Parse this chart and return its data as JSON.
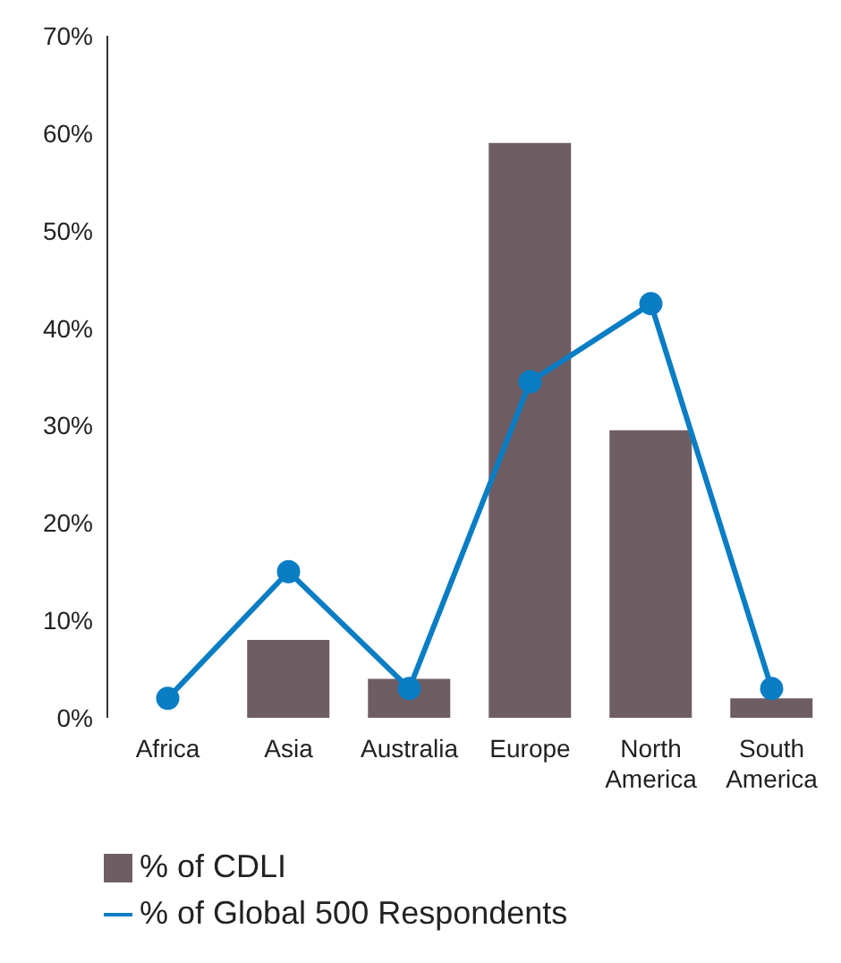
{
  "chart_data": {
    "type": "bar",
    "categories": [
      "Africa",
      "Asia",
      "Australia",
      "Europe",
      "North America",
      "South America"
    ],
    "series": [
      {
        "name": "% of CDLI",
        "color": "#6e5e64",
        "values": [
          0,
          8,
          4,
          59,
          29.5,
          2
        ]
      },
      {
        "name": "% of Global 500 Respondents",
        "type": "line",
        "color": "#0a7dc4",
        "values": [
          2,
          15,
          3,
          34.5,
          42.5,
          3
        ]
      }
    ],
    "ylim": [
      0,
      70
    ],
    "yticks": [
      {
        "value": 0,
        "label": "0%"
      },
      {
        "value": 10,
        "label": "10%"
      },
      {
        "value": 20,
        "label": "20%"
      },
      {
        "value": 30,
        "label": "30%"
      },
      {
        "value": 40,
        "label": "40%"
      },
      {
        "value": 50,
        "label": "50%"
      },
      {
        "value": 60,
        "label": "60%"
      },
      {
        "value": 70,
        "label": "70%"
      }
    ],
    "grid": false,
    "legend": "bottom left",
    "marker": "circle",
    "line_style": "solid"
  }
}
